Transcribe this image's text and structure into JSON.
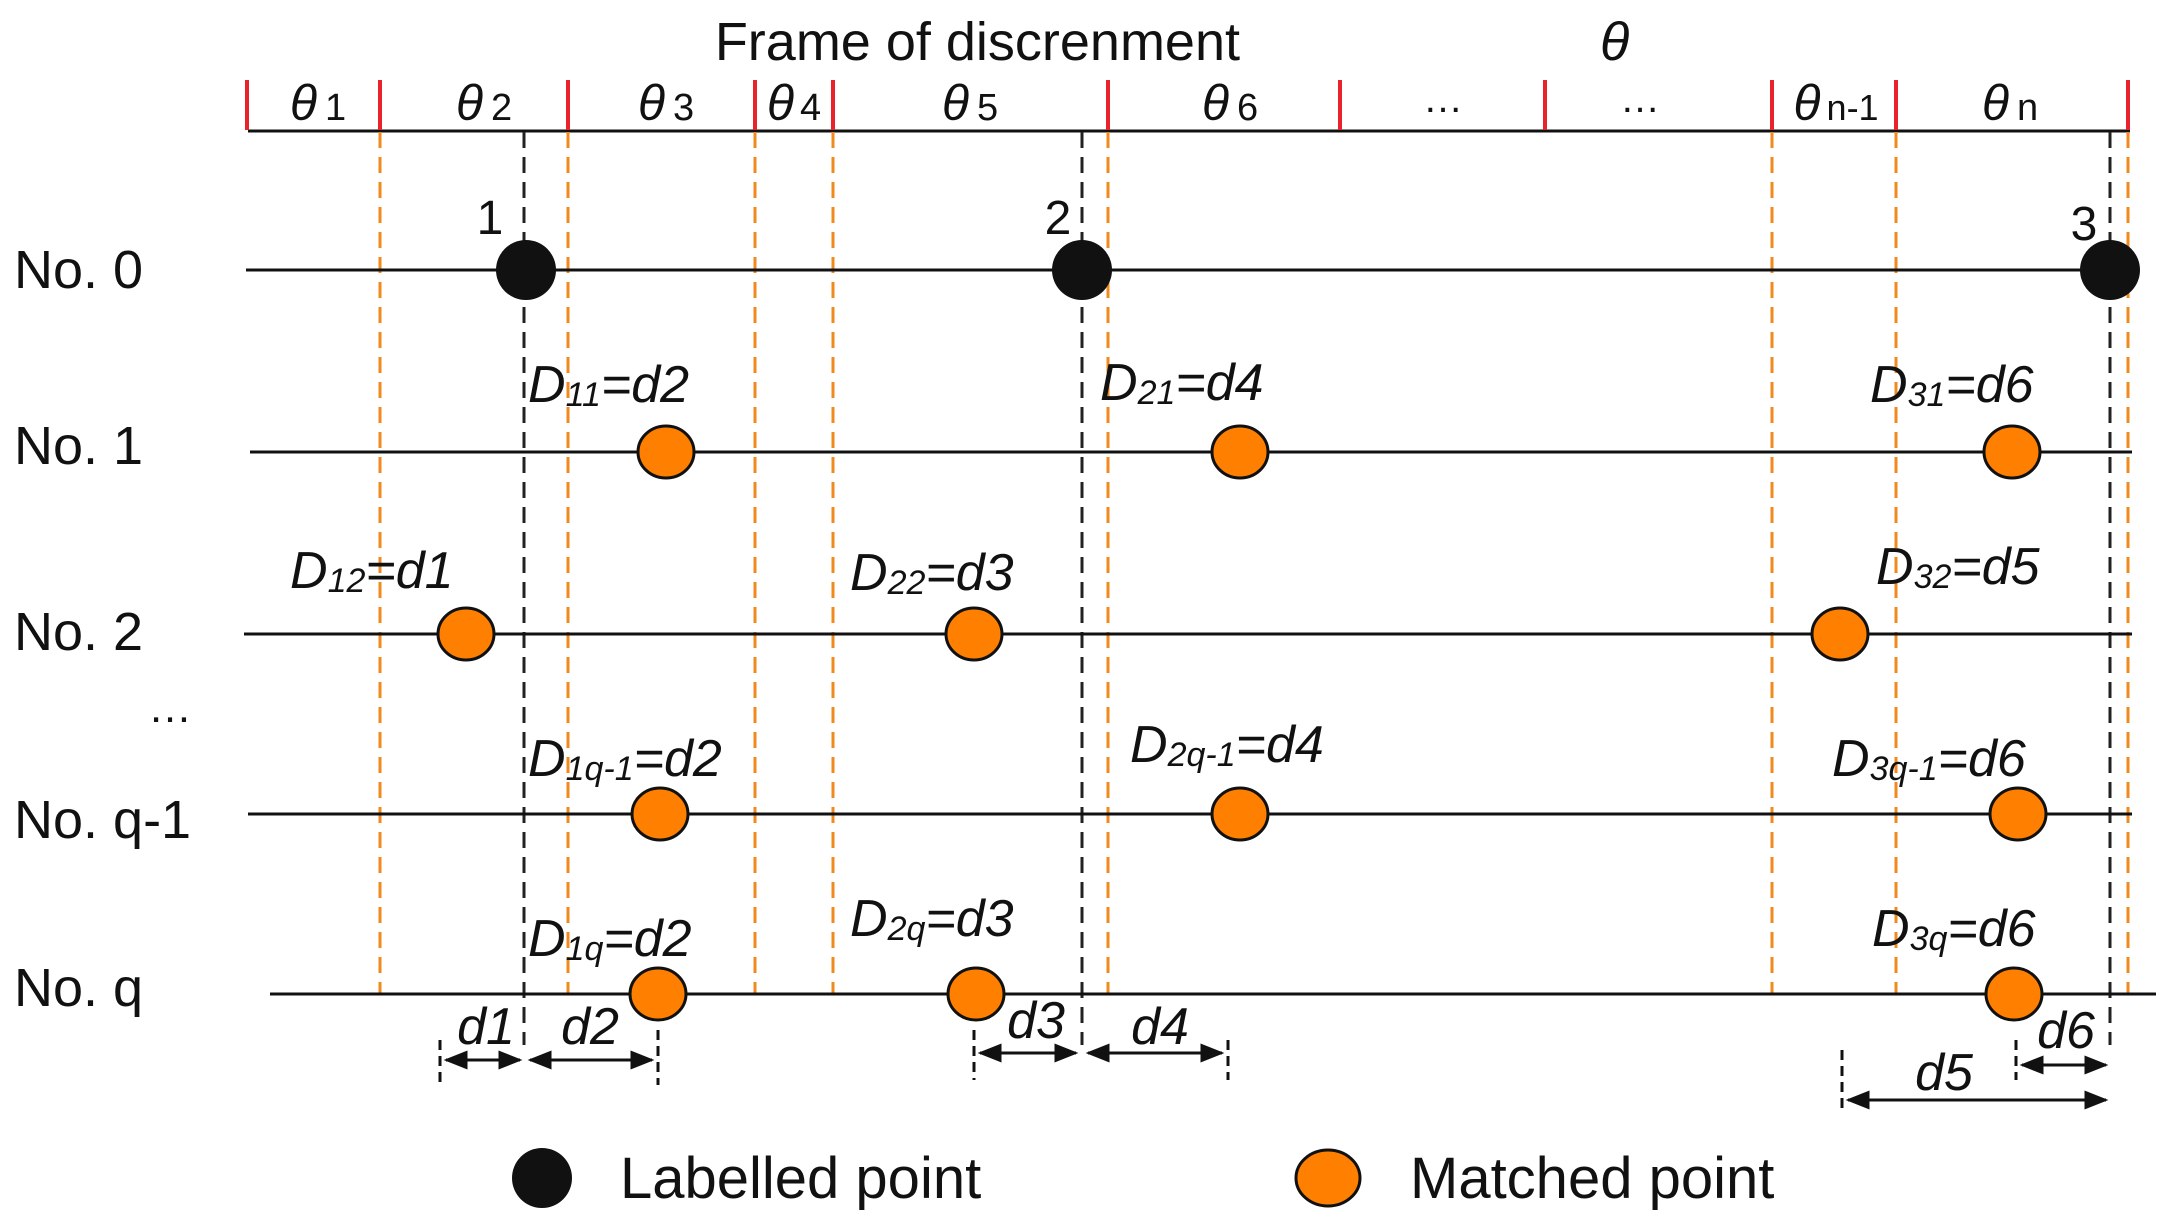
{
  "title": "Frame of discrenment",
  "title_symbol": "θ",
  "frame_cells": [
    {
      "sym": "θ",
      "sub": "1"
    },
    {
      "sym": "θ",
      "sub": "2"
    },
    {
      "sym": "θ",
      "sub": "3"
    },
    {
      "sym": "θ",
      "sub": "4"
    },
    {
      "sym": "θ",
      "sub": "5"
    },
    {
      "sym": "θ",
      "sub": "6"
    },
    {
      "sym": "…",
      "sub": ""
    },
    {
      "sym": "…",
      "sub": ""
    },
    {
      "sym": "θ",
      "sub": "n-1"
    },
    {
      "sym": "θ",
      "sub": "n"
    }
  ],
  "rows": [
    {
      "label": "No. 0"
    },
    {
      "label": "No. 1"
    },
    {
      "label": "No. 2"
    },
    {
      "label": "No. q-1"
    },
    {
      "label": "No. q"
    }
  ],
  "ellipsis": "…",
  "labelled_points": [
    "1",
    "2",
    "3"
  ],
  "annotations": [
    {
      "D": "D",
      "sub": "11",
      "rhs": "=d2"
    },
    {
      "D": "D",
      "sub": "21",
      "rhs": "=d4"
    },
    {
      "D": "D",
      "sub": "31",
      "rhs": "=d6"
    },
    {
      "D": "D",
      "sub": "12",
      "rhs": "=d1"
    },
    {
      "D": "D",
      "sub": "22",
      "rhs": "=d3"
    },
    {
      "D": "D",
      "sub": "32",
      "rhs": "=d5"
    },
    {
      "D": "D",
      "sub": "1q-1",
      "rhs": "=d2"
    },
    {
      "D": "D",
      "sub": "2q-1",
      "rhs": "=d4"
    },
    {
      "D": "D",
      "sub": "3q-1",
      "rhs": "=d6"
    },
    {
      "D": "D",
      "sub": "1q",
      "rhs": "=d2"
    },
    {
      "D": "D",
      "sub": "2q",
      "rhs": "=d3"
    },
    {
      "D": "D",
      "sub": "3q",
      "rhs": "=d6"
    }
  ],
  "distances": [
    "d1",
    "d2",
    "d3",
    "d4",
    "d5",
    "d6"
  ],
  "legend": {
    "labelled": "Labelled point",
    "matched": "Matched point"
  },
  "colors": {
    "labelled_fill": "#111111",
    "matched_fill": "#ff7f00",
    "frame_tick": "#e8232b",
    "orange_dash": "#f08a1e",
    "black_dash": "#222222"
  }
}
